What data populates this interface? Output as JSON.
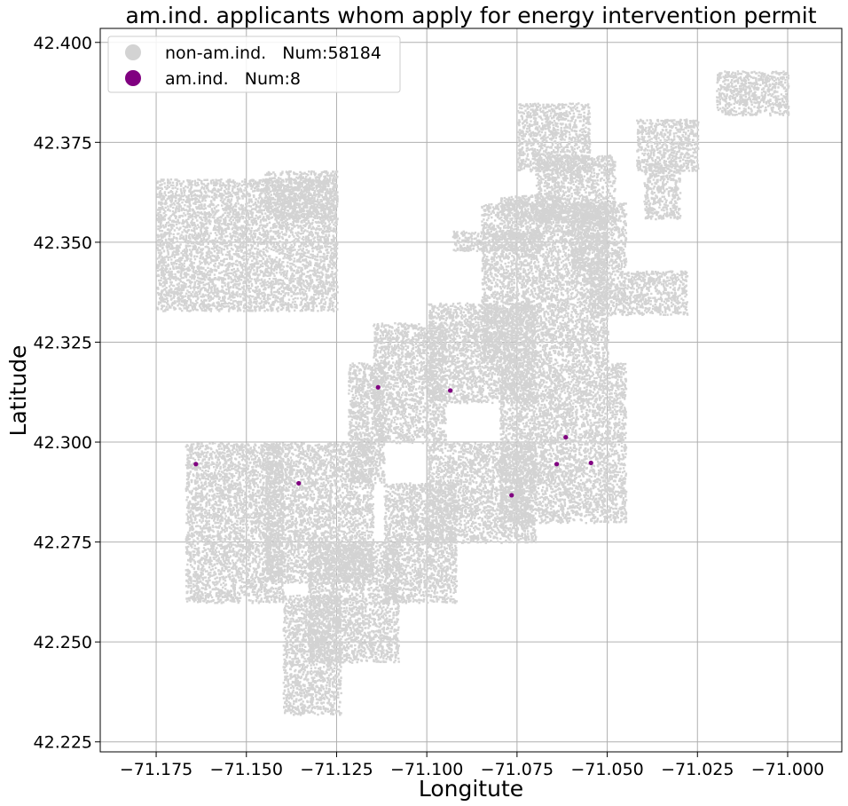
{
  "chart_data": {
    "type": "scatter",
    "title": "am.ind. applicants whom apply for energy intervention permit",
    "xlabel": "Longitute",
    "ylabel": "Latitude",
    "xlim": [
      -71.1905,
      -70.985
    ],
    "ylim": [
      42.2225,
      42.4035
    ],
    "xticks": [
      -71.175,
      -71.15,
      -71.125,
      -71.1,
      -71.075,
      -71.05,
      -71.025,
      -71.0
    ],
    "xtick_labels": [
      "−71.175",
      "−71.150",
      "−71.125",
      "−71.100",
      "−71.075",
      "−71.050",
      "−71.025",
      "−71.000"
    ],
    "yticks": [
      42.225,
      42.25,
      42.275,
      42.3,
      42.325,
      42.35,
      42.375,
      42.4
    ],
    "ytick_labels": [
      "42.225",
      "42.250",
      "42.275",
      "42.300",
      "42.325",
      "42.350",
      "42.375",
      "42.400"
    ],
    "grid": true,
    "legend_position": "top-left",
    "series": [
      {
        "name": "non-am.ind.   Num:58184",
        "color": "#d3d3d3",
        "count": 58184,
        "regions": [
          {
            "x": [
              -71.175,
              -71.125
            ],
            "y": [
              42.333,
              42.366
            ]
          },
          {
            "x": [
              -71.145,
              -71.125
            ],
            "y": [
              42.356,
              42.368
            ]
          },
          {
            "x": [
              -71.167,
              -71.14
            ],
            "y": [
              42.26,
              42.3
            ]
          },
          {
            "x": [
              -71.145,
              -71.115
            ],
            "y": [
              42.265,
              42.3
            ]
          },
          {
            "x": [
              -71.122,
              -71.112
            ],
            "y": [
              42.29,
              42.32
            ]
          },
          {
            "x": [
              -71.14,
              -71.124
            ],
            "y": [
              42.232,
              42.262
            ]
          },
          {
            "x": [
              -71.133,
              -71.108
            ],
            "y": [
              42.245,
              42.275
            ]
          },
          {
            "x": [
              -71.115,
              -71.095
            ],
            "y": [
              42.3,
              42.33
            ]
          },
          {
            "x": [
              -71.112,
              -71.092
            ],
            "y": [
              42.26,
              42.29
            ]
          },
          {
            "x": [
              -71.1,
              -71.07
            ],
            "y": [
              42.275,
              42.3
            ]
          },
          {
            "x": [
              -71.1,
              -71.07
            ],
            "y": [
              42.31,
              42.335
            ]
          },
          {
            "x": [
              -71.08,
              -71.045
            ],
            "y": [
              42.28,
              42.32
            ]
          },
          {
            "x": [
              -71.085,
              -71.05
            ],
            "y": [
              42.32,
              42.36
            ]
          },
          {
            "x": [
              -71.07,
              -71.048
            ],
            "y": [
              42.355,
              42.372
            ]
          },
          {
            "x": [
              -71.075,
              -71.055
            ],
            "y": [
              42.368,
              42.385
            ]
          },
          {
            "x": [
              -71.06,
              -71.045
            ],
            "y": [
              42.343,
              42.36
            ]
          },
          {
            "x": [
              -71.055,
              -71.028
            ],
            "y": [
              42.332,
              42.343
            ]
          },
          {
            "x": [
              -71.042,
              -71.025
            ],
            "y": [
              42.368,
              42.381
            ]
          },
          {
            "x": [
              -71.04,
              -71.03
            ],
            "y": [
              42.356,
              42.37
            ]
          },
          {
            "x": [
              -71.02,
              -71.0
            ],
            "y": [
              42.382,
              42.393
            ]
          },
          {
            "x": [
              -71.093,
              -71.068
            ],
            "y": [
              42.348,
              42.353
            ]
          },
          {
            "x": [
              -71.08,
              -71.063
            ],
            "y": [
              42.355,
              42.362
            ]
          }
        ]
      },
      {
        "name": "am.ind.   Num:8",
        "color": "#800080",
        "count": 8,
        "points": [
          {
            "x": -71.164,
            "y": 42.2945
          },
          {
            "x": -71.1355,
            "y": 42.2897
          },
          {
            "x": -71.1135,
            "y": 42.3137
          },
          {
            "x": -71.0935,
            "y": 42.3129
          },
          {
            "x": -71.0765,
            "y": 42.2867
          },
          {
            "x": -71.064,
            "y": 42.2945
          },
          {
            "x": -71.0615,
            "y": 42.3012
          },
          {
            "x": -71.0545,
            "y": 42.2948
          }
        ]
      }
    ]
  }
}
